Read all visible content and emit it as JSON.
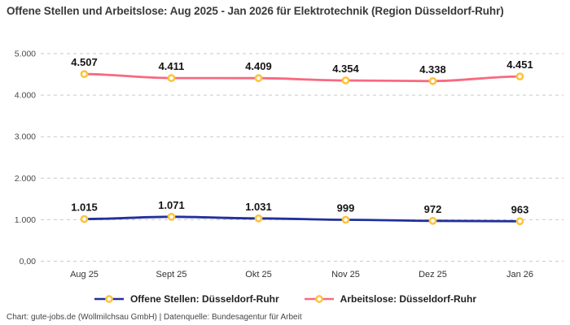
{
  "title": "Offene Stellen und Arbeitslose: Aug 2025 - Jan 2026 für Elektrotechnik (Region Düsseldorf-Ruhr)",
  "footer": "Chart: gute-jobs.de (Wollmilchsau GmbH) | Datenquelle: Bundesagentur für Arbeit",
  "colors": {
    "offene_stellen": "#21309a",
    "arbeitslose": "#f8697f",
    "marker_ring": "#fcc33f",
    "marker_fill": "#ffffff",
    "grid": "#c9c9c9",
    "title_text": "#3a3a3a",
    "data_label_text": "#141414"
  },
  "chart_data": {
    "type": "line",
    "title": "Offene Stellen und Arbeitslose: Aug 2025 - Jan 2026 für Elektrotechnik (Region Düsseldorf-Ruhr)",
    "categories": [
      "Aug 25",
      "Sept 25",
      "Okt 25",
      "Nov 25",
      "Dez 25",
      "Jan 26"
    ],
    "series": [
      {
        "name": "Offene Stellen: Düsseldorf-Ruhr",
        "values": [
          1015,
          1071,
          1031,
          999,
          972,
          963
        ],
        "labels": [
          "1.015",
          "1.071",
          "1.031",
          "999",
          "972",
          "963"
        ],
        "color_key": "offene_stellen"
      },
      {
        "name": "Arbeitslose: Düsseldorf-Ruhr",
        "values": [
          4507,
          4411,
          4409,
          4354,
          4338,
          4451
        ],
        "labels": [
          "4.507",
          "4.411",
          "4.409",
          "4.354",
          "4.338",
          "4.451"
        ],
        "color_key": "arbeitslose"
      }
    ],
    "y_ticks": [
      {
        "value": 0,
        "label": "0,00"
      },
      {
        "value": 1000,
        "label": "1.000"
      },
      {
        "value": 2000,
        "label": "2.000"
      },
      {
        "value": 3000,
        "label": "3.000"
      },
      {
        "value": 4000,
        "label": "4.000"
      },
      {
        "value": 5000,
        "label": "5.000"
      }
    ],
    "ylim": [
      0,
      5000
    ],
    "grid": "horizontal-dashed",
    "legend_position": "bottom",
    "marker": "ring"
  }
}
